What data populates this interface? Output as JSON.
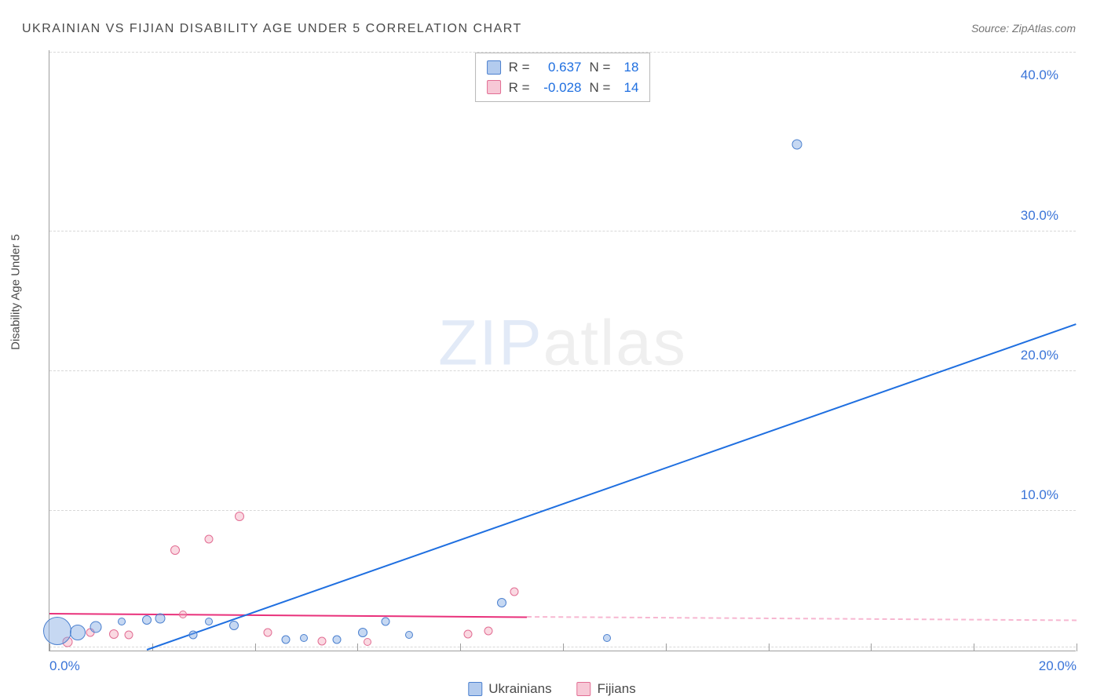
{
  "title": "UKRAINIAN VS FIJIAN DISABILITY AGE UNDER 5 CORRELATION CHART",
  "source": "Source: ZipAtlas.com",
  "y_axis_label": "Disability Age Under 5",
  "watermark": {
    "prefix": "ZIP",
    "suffix": "atlas"
  },
  "colors": {
    "series1_fill": "rgba(129,168,226,0.45)",
    "series1_stroke": "#4b80cf",
    "series1_line": "#1f6fe0",
    "series2_fill": "rgba(242,164,186,0.42)",
    "series2_stroke": "#e26d93",
    "series2_line": "#e9317b",
    "axis": "#9e9e9e",
    "grid": "#d8d8d8",
    "text": "#4a4a4a",
    "value": "#1f6fe0",
    "background": "#ffffff"
  },
  "stats": {
    "series1": {
      "r_label": "R =",
      "r": "0.637",
      "n_label": "N =",
      "n": "18"
    },
    "series2": {
      "r_label": "R =",
      "r": "-0.028",
      "n_label": "N =",
      "n": "14"
    }
  },
  "legend": {
    "series1": "Ukrainians",
    "series2": "Fijians"
  },
  "chart": {
    "type": "scatter",
    "xlim": [
      0,
      20
    ],
    "ylim": [
      0,
      43
    ],
    "x_ticks": [
      0,
      2,
      4,
      6,
      8,
      10,
      12,
      14,
      16,
      18,
      20
    ],
    "x_tick_labels": {
      "0": "0.0%",
      "20": "20.0%"
    },
    "y_ticks": [
      10,
      20,
      30,
      40
    ],
    "y_tick_labels": {
      "10": "10.0%",
      "20": "20.0%",
      "30": "30.0%",
      "40": "40.0%"
    },
    "y_grid": [
      0.2,
      10,
      20,
      30,
      42.8
    ],
    "trend_lines": {
      "series1": {
        "x1": 1.9,
        "y1": 0,
        "x2": 20.0,
        "y2": 23.3
      },
      "series2_solid": {
        "x1": 0,
        "y1": 2.6,
        "x2": 9.3,
        "y2": 2.35
      },
      "series2_dashed": {
        "x1": 9.3,
        "y1": 2.35,
        "x2": 20.0,
        "y2": 2.1
      }
    },
    "series1_points": [
      {
        "x": 0.15,
        "y": 1.4,
        "r": 36
      },
      {
        "x": 0.55,
        "y": 1.3,
        "r": 20
      },
      {
        "x": 0.9,
        "y": 1.7,
        "r": 15
      },
      {
        "x": 1.4,
        "y": 2.1,
        "r": 10
      },
      {
        "x": 1.9,
        "y": 2.2,
        "r": 12
      },
      {
        "x": 2.15,
        "y": 2.3,
        "r": 13
      },
      {
        "x": 2.8,
        "y": 1.1,
        "r": 11
      },
      {
        "x": 3.1,
        "y": 2.1,
        "r": 10
      },
      {
        "x": 3.6,
        "y": 1.8,
        "r": 12
      },
      {
        "x": 4.6,
        "y": 0.8,
        "r": 11
      },
      {
        "x": 4.95,
        "y": 0.9,
        "r": 10
      },
      {
        "x": 5.6,
        "y": 0.8,
        "r": 11
      },
      {
        "x": 6.1,
        "y": 1.3,
        "r": 12
      },
      {
        "x": 6.55,
        "y": 2.1,
        "r": 11
      },
      {
        "x": 7.0,
        "y": 1.1,
        "r": 10
      },
      {
        "x": 8.8,
        "y": 3.4,
        "r": 12
      },
      {
        "x": 10.85,
        "y": 0.9,
        "r": 10
      },
      {
        "x": 14.55,
        "y": 36.2,
        "r": 13
      }
    ],
    "series2_points": [
      {
        "x": 0.35,
        "y": 0.6,
        "r": 13
      },
      {
        "x": 0.8,
        "y": 1.3,
        "r": 11
      },
      {
        "x": 1.25,
        "y": 1.2,
        "r": 12
      },
      {
        "x": 1.55,
        "y": 1.1,
        "r": 11
      },
      {
        "x": 2.45,
        "y": 7.2,
        "r": 12
      },
      {
        "x": 2.6,
        "y": 2.6,
        "r": 10
      },
      {
        "x": 3.1,
        "y": 8.0,
        "r": 11
      },
      {
        "x": 3.7,
        "y": 9.6,
        "r": 12
      },
      {
        "x": 4.25,
        "y": 1.3,
        "r": 11
      },
      {
        "x": 5.3,
        "y": 0.7,
        "r": 11
      },
      {
        "x": 6.2,
        "y": 0.6,
        "r": 10
      },
      {
        "x": 8.15,
        "y": 1.2,
        "r": 11
      },
      {
        "x": 8.55,
        "y": 1.4,
        "r": 11
      },
      {
        "x": 9.05,
        "y": 4.2,
        "r": 11
      }
    ]
  }
}
